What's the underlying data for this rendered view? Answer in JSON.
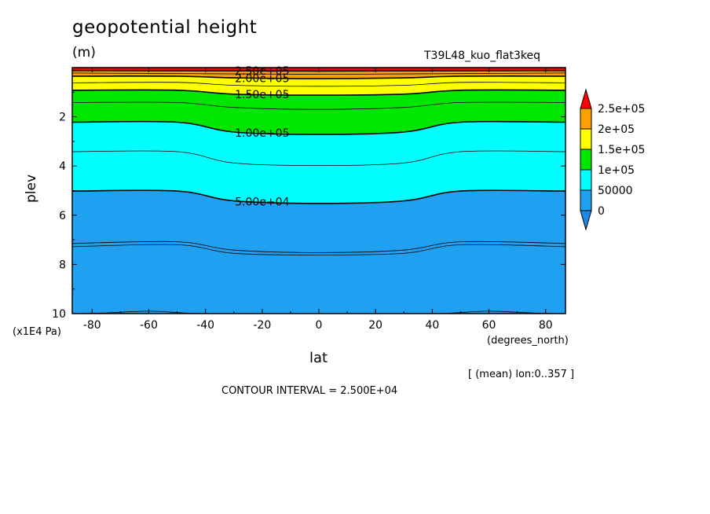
{
  "chart_data": {
    "type": "heatmap",
    "title": "geopotential height",
    "units": "(m)",
    "run_id": "T39L48_kuo_flat3keq",
    "xlabel": "lat",
    "xunits": "(degrees_north)",
    "ylabel": "plev",
    "yunits": "(x1E4 Pa)",
    "xlim": [
      -87,
      87
    ],
    "ylim": [
      10,
      0
    ],
    "x_ticks": [
      -80,
      -60,
      -40,
      -20,
      0,
      20,
      40,
      60,
      80
    ],
    "x_tick_labels": [
      "-80",
      "-60",
      "-40",
      "-20",
      "0",
      "20",
      "40",
      "60",
      "80"
    ],
    "y_ticks": [
      2,
      4,
      6,
      8,
      10
    ],
    "y_tick_labels": [
      "2",
      "4",
      "6",
      "8",
      "10"
    ],
    "footnote": "[ (mean) lon:0..357 ]",
    "contour_interval_text": "CONTOUR INTERVAL = 2.500E+04",
    "colorbar": {
      "levels": [
        0,
        50000,
        100000,
        150000,
        200000,
        250000
      ],
      "labels": [
        "0",
        "50000",
        "1e+05",
        "1.5e+05",
        "2e+05",
        "2.5e+05"
      ],
      "colors": [
        "#1e88e5",
        "#1fa0f0",
        "#00ffff",
        "#00e600",
        "#ffff00",
        "#ffa000",
        "#ff0000"
      ],
      "extend": "both"
    },
    "bands": [
      {
        "from": 0,
        "to": 50000,
        "color": "#1fa0f0"
      },
      {
        "from": 50000,
        "to": 100000,
        "color": "#00ffff"
      },
      {
        "from": 100000,
        "to": 150000,
        "color": "#00e600"
      },
      {
        "from": 150000,
        "to": 200000,
        "color": "#ffff00"
      },
      {
        "from": 200000,
        "to": 250000,
        "color": "#ffa000"
      }
    ],
    "contours": [
      {
        "level": 250000,
        "label": "2.50e+05",
        "plev": [
          [
            -87,
            0.12
          ],
          [
            -40,
            0.13
          ],
          [
            0,
            0.14
          ],
          [
            40,
            0.13
          ],
          [
            87,
            0.12
          ]
        ]
      },
      {
        "level": 225000,
        "label": "",
        "plev": [
          [
            -87,
            0.22
          ],
          [
            -40,
            0.25
          ],
          [
            0,
            0.27
          ],
          [
            40,
            0.25
          ],
          [
            87,
            0.22
          ]
        ]
      },
      {
        "level": 200000,
        "label": "2.00e+05",
        "plev": [
          [
            -87,
            0.35
          ],
          [
            -50,
            0.35
          ],
          [
            -30,
            0.42
          ],
          [
            0,
            0.45
          ],
          [
            30,
            0.42
          ],
          [
            50,
            0.35
          ],
          [
            87,
            0.35
          ]
        ]
      },
      {
        "level": 175000,
        "label": "",
        "plev": [
          [
            -87,
            0.62
          ],
          [
            -50,
            0.6
          ],
          [
            -30,
            0.72
          ],
          [
            0,
            0.76
          ],
          [
            30,
            0.72
          ],
          [
            50,
            0.6
          ],
          [
            87,
            0.62
          ]
        ]
      },
      {
        "level": 150000,
        "label": "1.50e+05",
        "plev": [
          [
            -87,
            0.92
          ],
          [
            -50,
            0.92
          ],
          [
            -30,
            1.08
          ],
          [
            0,
            1.12
          ],
          [
            30,
            1.08
          ],
          [
            50,
            0.92
          ],
          [
            87,
            0.92
          ]
        ]
      },
      {
        "level": 125000,
        "label": "",
        "plev": [
          [
            -87,
            1.42
          ],
          [
            -50,
            1.42
          ],
          [
            -30,
            1.62
          ],
          [
            0,
            1.7
          ],
          [
            30,
            1.62
          ],
          [
            50,
            1.42
          ],
          [
            87,
            1.42
          ]
        ]
      },
      {
        "level": 100000,
        "label": "1.00e+05",
        "plev": [
          [
            -87,
            2.22
          ],
          [
            -50,
            2.22
          ],
          [
            -30,
            2.62
          ],
          [
            0,
            2.72
          ],
          [
            30,
            2.62
          ],
          [
            50,
            2.22
          ],
          [
            87,
            2.22
          ]
        ]
      },
      {
        "level": 75000,
        "label": "",
        "plev": [
          [
            -87,
            3.42
          ],
          [
            -50,
            3.42
          ],
          [
            -30,
            3.88
          ],
          [
            0,
            3.98
          ],
          [
            30,
            3.88
          ],
          [
            50,
            3.42
          ],
          [
            87,
            3.42
          ]
        ]
      },
      {
        "level": 50000,
        "label": "5.00e+04",
        "plev": [
          [
            -87,
            5.02
          ],
          [
            -50,
            5.02
          ],
          [
            -30,
            5.42
          ],
          [
            0,
            5.52
          ],
          [
            30,
            5.42
          ],
          [
            50,
            5.02
          ],
          [
            87,
            5.02
          ]
        ]
      },
      {
        "level": 25000,
        "label": "",
        "plev": [
          [
            -87,
            7.15
          ],
          [
            -50,
            7.08
          ],
          [
            -30,
            7.42
          ],
          [
            0,
            7.52
          ],
          [
            30,
            7.42
          ],
          [
            50,
            7.08
          ],
          [
            87,
            7.15
          ]
        ]
      },
      {
        "level": 25000,
        "label": "",
        "plev": [
          [
            -87,
            7.28
          ],
          [
            -50,
            7.2
          ],
          [
            -30,
            7.55
          ],
          [
            0,
            7.62
          ],
          [
            30,
            7.55
          ],
          [
            50,
            7.2
          ],
          [
            87,
            7.28
          ]
        ]
      },
      {
        "level": 0,
        "label": "",
        "plev": [
          [
            -87,
            10
          ],
          [
            -75,
            9.97
          ],
          [
            -60,
            9.9
          ],
          [
            -48,
            9.97
          ],
          [
            -40,
            10
          ]
        ]
      },
      {
        "level": 0,
        "label": "",
        "plev": [
          [
            40,
            10
          ],
          [
            48,
            9.97
          ],
          [
            60,
            9.9
          ],
          [
            75,
            9.97
          ],
          [
            87,
            10
          ]
        ]
      }
    ]
  }
}
